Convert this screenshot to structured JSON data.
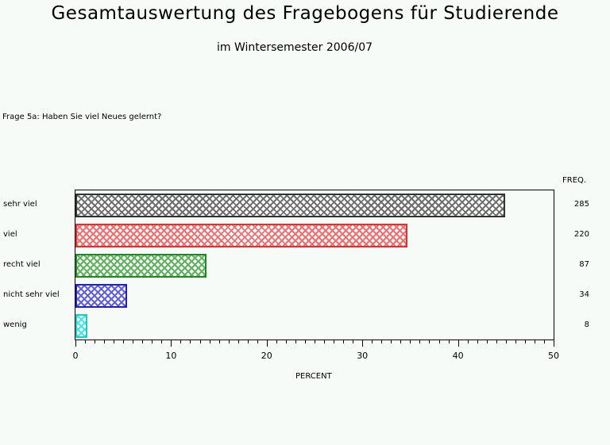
{
  "header": {
    "title": "Gesamtauswertung des Fragebogens für Studierende",
    "subtitle": "im Wintersemester 2006/07"
  },
  "question": "Frage 5a: Haben Sie viel Neues gelernt?",
  "freq_header": "FREQ.",
  "chart_data": {
    "type": "bar",
    "orientation": "horizontal",
    "title": "Frage 5a: Haben Sie viel Neues gelernt?",
    "xlabel": "PERCENT",
    "ylabel": "",
    "xlim": [
      0,
      50
    ],
    "x_ticks": [
      0,
      10,
      20,
      30,
      40,
      50
    ],
    "grid": false,
    "categories": [
      "sehr viel",
      "viel",
      "recht viel",
      "nicht sehr viel",
      "wenig"
    ],
    "values": [
      44.95,
      34.7,
      13.72,
      5.36,
      1.26
    ],
    "frequencies": [
      285,
      220,
      87,
      34,
      8
    ],
    "colors": [
      "#6e6e6e",
      "#f26d6d",
      "#5fb35f",
      "#6060e0",
      "#40e8e8"
    ],
    "border_colors": [
      "#333333",
      "#e23030",
      "#1f8a1f",
      "#2020c0",
      "#20c8c8"
    ],
    "fill_pattern": "crosshatch"
  },
  "x_tick_labels": [
    "0",
    "10",
    "20",
    "30",
    "40",
    "50"
  ],
  "xlabel": "PERCENT",
  "rows": [
    {
      "label": "sehr viel",
      "freq": "285"
    },
    {
      "label": "viel",
      "freq": "220"
    },
    {
      "label": "recht viel",
      "freq": "87"
    },
    {
      "label": "nicht sehr viel",
      "freq": "34"
    },
    {
      "label": "wenig",
      "freq": "8"
    }
  ]
}
